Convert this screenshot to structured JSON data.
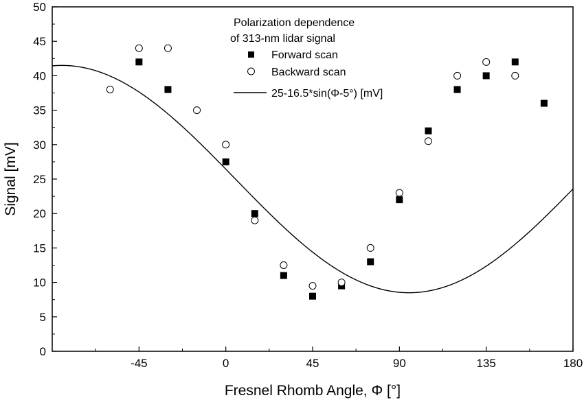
{
  "chart_data": {
    "type": "scatter",
    "title": "",
    "xlabel": "Fresnel Rhomb Angle, Φ [°]",
    "ylabel": "Signal [mV]",
    "xlim": [
      -90,
      180
    ],
    "ylim": [
      0,
      50
    ],
    "xticks": [
      -45,
      0,
      45,
      90,
      135,
      180
    ],
    "xtick_labels": [
      "-45",
      "0",
      "45",
      "90",
      "135",
      "180"
    ],
    "yticks": [
      0,
      5,
      10,
      15,
      20,
      25,
      30,
      35,
      40,
      45,
      50
    ],
    "ytick_labels": [
      "0",
      "5",
      "10",
      "15",
      "20",
      "25",
      "30",
      "35",
      "40",
      "45",
      "50"
    ],
    "grid": false,
    "legend": {
      "placement": "top-center",
      "title_lines": [
        "Polarization dependence",
        "of 313-nm lidar signal"
      ]
    },
    "series": [
      {
        "name": "Forward scan",
        "marker": "filled-square",
        "x": [
          -45,
          -30,
          0,
          15,
          30,
          45,
          60,
          75,
          90,
          105,
          120,
          135,
          150,
          165
        ],
        "y": [
          42,
          38,
          27.5,
          20,
          11,
          8,
          9.5,
          13,
          22,
          32,
          38,
          40,
          42,
          36
        ]
      },
      {
        "name": "Backward scan",
        "marker": "open-circle",
        "x": [
          -60,
          -45,
          -30,
          -15,
          0,
          15,
          30,
          45,
          60,
          75,
          90,
          105,
          120,
          135,
          150
        ],
        "y": [
          38,
          44,
          44,
          35,
          30,
          19,
          12.5,
          9.5,
          10,
          15,
          23,
          30.5,
          40,
          42,
          40
        ]
      },
      {
        "name": "25-16.5*sin(Φ-5°) [mV]",
        "type": "line",
        "function": {
          "offset": 25,
          "amplitude": -16.5,
          "phase_deg": 5
        }
      }
    ]
  }
}
